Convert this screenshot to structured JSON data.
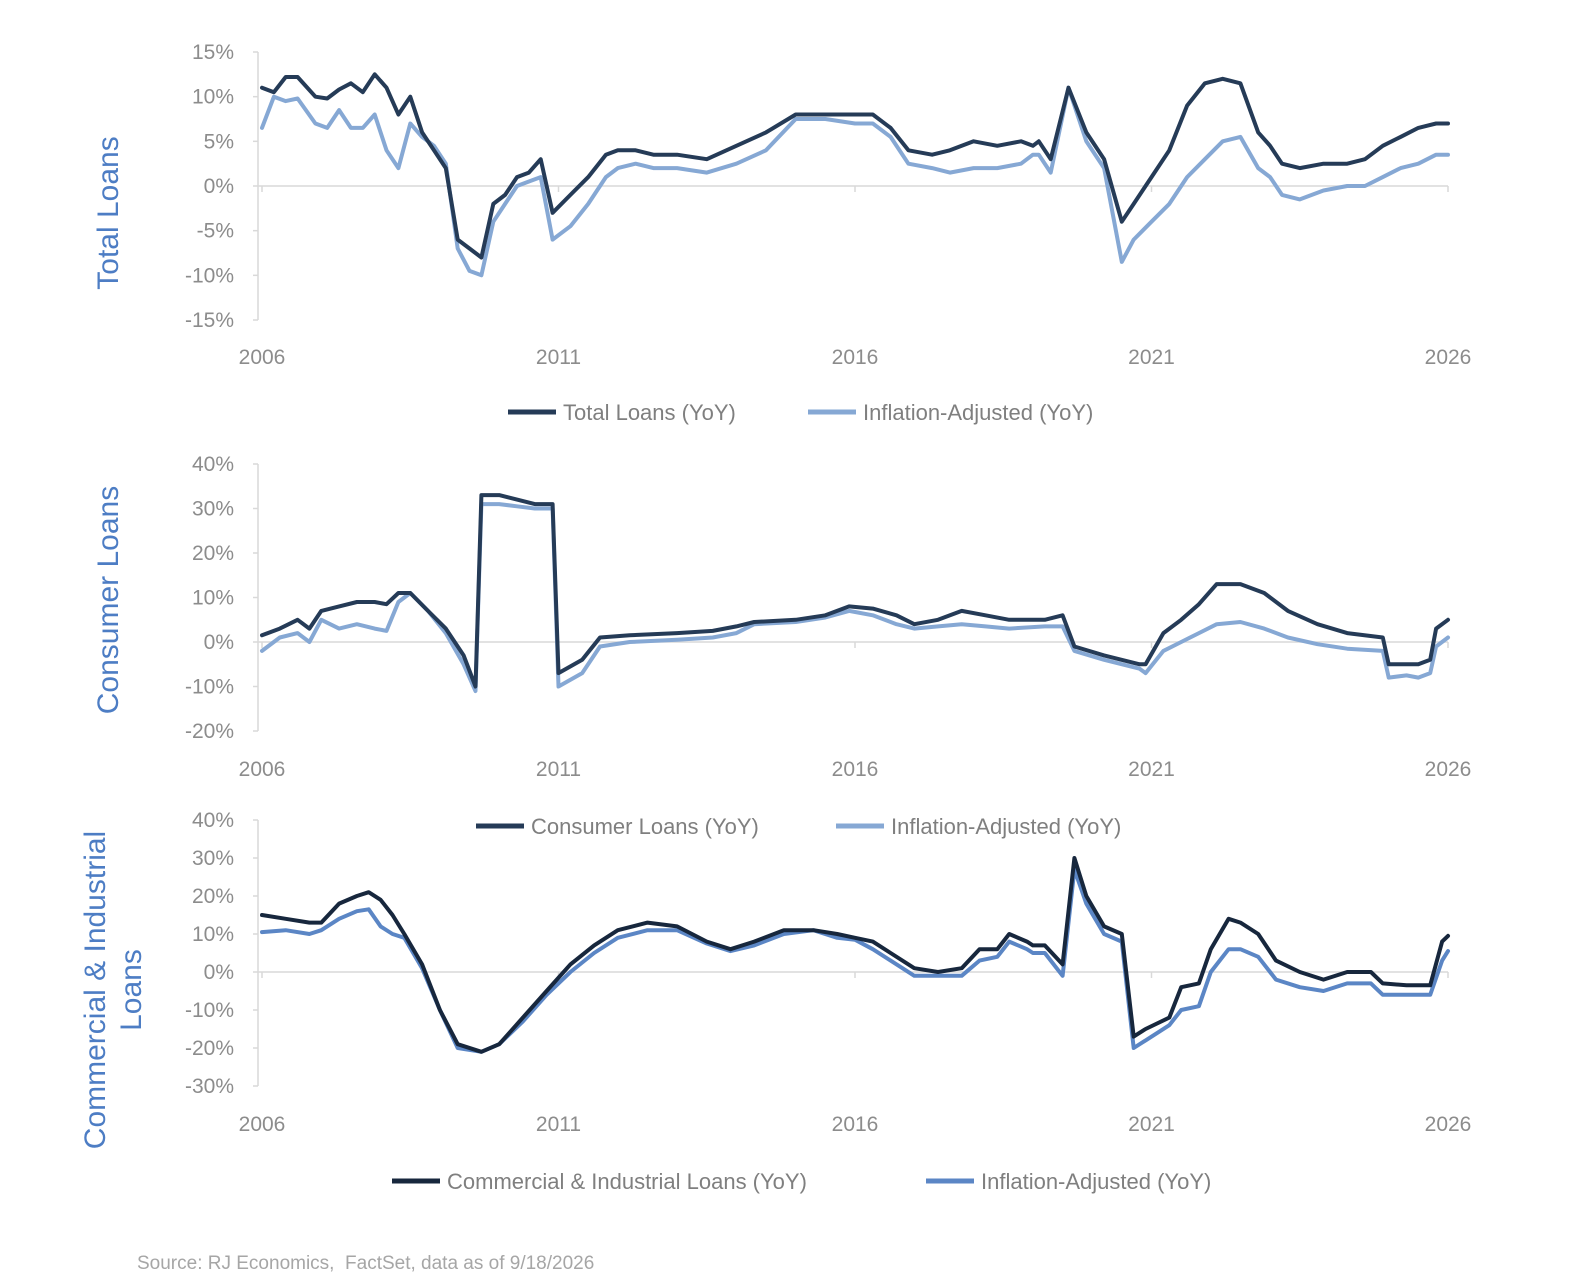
{
  "source": "Source: RJ Economics,  FactSet, data as of 9/18/2026",
  "chart_data": [
    {
      "type": "line",
      "ylabel": "Total Loans",
      "ylim": [
        -15,
        15
      ],
      "yticks": [
        -15,
        -10,
        -5,
        0,
        5,
        10,
        15
      ],
      "ytick_labels": [
        "-15%",
        "-10%",
        "-5%",
        "0%",
        "5%",
        "10%",
        "15%"
      ],
      "xlim": [
        2006,
        2026
      ],
      "xticks": [
        "2006",
        "2011",
        "2016",
        "2021",
        "2026"
      ],
      "series": [
        {
          "name": "Total Loans (YoY)",
          "color": "#253b57",
          "x": [
            2006.0,
            2006.2,
            2006.4,
            2006.6,
            2006.9,
            2007.1,
            2007.3,
            2007.5,
            2007.7,
            2007.9,
            2008.1,
            2008.3,
            2008.5,
            2008.7,
            2008.9,
            2009.1,
            2009.3,
            2009.5,
            2009.7,
            2009.9,
            2010.1,
            2010.3,
            2010.5,
            2010.7,
            2010.9,
            2011.2,
            2011.5,
            2011.8,
            2012.0,
            2012.3,
            2012.6,
            2013.0,
            2013.5,
            2014.0,
            2014.5,
            2015.0,
            2015.5,
            2016.0,
            2016.3,
            2016.6,
            2016.9,
            2017.3,
            2017.6,
            2018.0,
            2018.4,
            2018.8,
            2019.0,
            2019.1,
            2019.3,
            2019.6,
            2019.9,
            2020.2,
            2020.5,
            2020.7,
            2021.0,
            2021.3,
            2021.6,
            2021.9,
            2022.2,
            2022.5,
            2022.8,
            2023.0,
            2023.2,
            2023.5,
            2023.9,
            2024.3,
            2024.6,
            2024.9,
            2025.2,
            2025.5,
            2025.8,
            2026.0
          ],
          "values": [
            11,
            10.5,
            12.2,
            12.2,
            10,
            9.8,
            10.8,
            11.5,
            10.5,
            12.5,
            11,
            8,
            10,
            6,
            4,
            2,
            -6,
            -7,
            -8,
            -2,
            -1,
            1,
            1.5,
            3,
            -3,
            -1,
            1,
            3.5,
            4,
            4,
            3.5,
            3.5,
            3,
            4.5,
            6,
            8,
            8,
            8,
            8,
            6.5,
            4,
            3.5,
            4,
            5,
            4.5,
            5,
            4.5,
            5,
            3,
            11,
            6,
            3,
            -4,
            -2,
            1,
            4,
            9,
            11.5,
            12,
            11.5,
            6,
            4.5,
            2.5,
            2,
            2.5,
            2.5,
            3,
            4.5,
            5.5,
            6.5,
            7,
            7
          ]
        },
        {
          "name": "Inflation-Adjusted (YoY)",
          "color": "#86a8d4",
          "x": [
            2006.0,
            2006.2,
            2006.4,
            2006.6,
            2006.9,
            2007.1,
            2007.3,
            2007.5,
            2007.7,
            2007.9,
            2008.1,
            2008.3,
            2008.5,
            2008.7,
            2008.9,
            2009.1,
            2009.3,
            2009.5,
            2009.7,
            2009.9,
            2010.1,
            2010.3,
            2010.5,
            2010.7,
            2010.9,
            2011.2,
            2011.5,
            2011.8,
            2012.0,
            2012.3,
            2012.6,
            2013.0,
            2013.5,
            2014.0,
            2014.5,
            2015.0,
            2015.5,
            2016.0,
            2016.3,
            2016.6,
            2016.9,
            2017.3,
            2017.6,
            2018.0,
            2018.4,
            2018.8,
            2019.0,
            2019.1,
            2019.3,
            2019.6,
            2019.9,
            2020.2,
            2020.5,
            2020.7,
            2021.0,
            2021.3,
            2021.6,
            2021.9,
            2022.2,
            2022.5,
            2022.8,
            2023.0,
            2023.2,
            2023.5,
            2023.9,
            2024.3,
            2024.6,
            2024.9,
            2025.2,
            2025.5,
            2025.8,
            2026.0
          ],
          "values": [
            6.5,
            10,
            9.5,
            9.8,
            7,
            6.5,
            8.5,
            6.5,
            6.5,
            8,
            4,
            2,
            7,
            5.5,
            4.5,
            2.5,
            -7,
            -9.5,
            -10,
            -4,
            -2,
            0,
            0.5,
            1,
            -6,
            -4.5,
            -2,
            1,
            2,
            2.5,
            2,
            2,
            1.5,
            2.5,
            4,
            7.5,
            7.5,
            7,
            7,
            5.5,
            2.5,
            2,
            1.5,
            2,
            2,
            2.5,
            3.5,
            3.5,
            1.5,
            11,
            5,
            2,
            -8.5,
            -6,
            -4,
            -2,
            1,
            3,
            5,
            5.5,
            2,
            1,
            -1,
            -1.5,
            -0.5,
            0,
            0,
            1,
            2,
            2.5,
            3.5,
            3.5
          ]
        }
      ]
    },
    {
      "type": "line",
      "ylabel": "Consumer  Loans",
      "ylim": [
        -20,
        40
      ],
      "yticks": [
        -20,
        -10,
        0,
        10,
        20,
        30,
        40
      ],
      "ytick_labels": [
        "-20%",
        "-10%",
        "0%",
        "10%",
        "20%",
        "30%",
        "40%"
      ],
      "xlim": [
        2006,
        2026
      ],
      "xticks": [
        "2006",
        "2011",
        "2016",
        "2021",
        "2026"
      ],
      "series": [
        {
          "name": "Consumer Loans (YoY)",
          "color": "#253b57",
          "x": [
            2006.0,
            2006.3,
            2006.6,
            2006.8,
            2007.0,
            2007.3,
            2007.6,
            2007.9,
            2008.1,
            2008.3,
            2008.5,
            2008.8,
            2009.1,
            2009.4,
            2009.6,
            2009.7,
            2010.0,
            2010.3,
            2010.6,
            2010.9,
            2011.0,
            2011.4,
            2011.7,
            2012.2,
            2013.0,
            2013.6,
            2014.0,
            2014.3,
            2015.0,
            2015.5,
            2015.9,
            2016.3,
            2016.7,
            2017.0,
            2017.4,
            2017.8,
            2018.2,
            2018.6,
            2019.2,
            2019.5,
            2019.7,
            2020.2,
            2020.8,
            2020.9,
            2021.2,
            2021.5,
            2021.8,
            2022.1,
            2022.5,
            2022.9,
            2023.3,
            2023.8,
            2024.3,
            2024.9,
            2025.0,
            2025.3,
            2025.5,
            2025.7,
            2025.8,
            2026.0
          ],
          "values": [
            1.5,
            3,
            5,
            3,
            7,
            8,
            9,
            9,
            8.5,
            11,
            11,
            7,
            3,
            -3,
            -10,
            33,
            33,
            32,
            31,
            31,
            -7,
            -4,
            1,
            1.5,
            2,
            2.5,
            3.5,
            4.5,
            5,
            6,
            8,
            7.5,
            6,
            4,
            5,
            7,
            6,
            5,
            5,
            6,
            -1,
            -3,
            -5,
            -5,
            2,
            5,
            8.5,
            13,
            13,
            11,
            7,
            4,
            2,
            1,
            -5,
            -5,
            -5,
            -4,
            3,
            5
          ]
        },
        {
          "name": "Inflation-Adjusted (YoY)",
          "color": "#86a8d4",
          "x": [
            2006.0,
            2006.3,
            2006.6,
            2006.8,
            2007.0,
            2007.3,
            2007.6,
            2007.9,
            2008.1,
            2008.3,
            2008.5,
            2008.8,
            2009.1,
            2009.4,
            2009.6,
            2009.7,
            2010.0,
            2010.3,
            2010.6,
            2010.9,
            2011.0,
            2011.4,
            2011.7,
            2012.2,
            2013.0,
            2013.6,
            2014.0,
            2014.3,
            2015.0,
            2015.5,
            2015.9,
            2016.3,
            2016.7,
            2017.0,
            2017.4,
            2017.8,
            2018.2,
            2018.6,
            2019.2,
            2019.5,
            2019.7,
            2020.2,
            2020.8,
            2020.9,
            2021.2,
            2021.5,
            2021.8,
            2022.1,
            2022.5,
            2022.9,
            2023.3,
            2023.8,
            2024.3,
            2024.9,
            2025.0,
            2025.3,
            2025.5,
            2025.7,
            2025.8,
            2026.0
          ],
          "values": [
            -2,
            1,
            2,
            0,
            5,
            3,
            4,
            3,
            2.5,
            9,
            11,
            7,
            2,
            -5,
            -11,
            31,
            31,
            30.5,
            30,
            30,
            -10,
            -7,
            -1,
            0,
            0.5,
            1,
            2,
            4,
            4.5,
            5.5,
            7,
            6,
            4,
            3,
            3.5,
            4,
            3.5,
            3,
            3.5,
            3.5,
            -2,
            -4,
            -6,
            -7,
            -2,
            0,
            2,
            4,
            4.5,
            3,
            1,
            -0.5,
            -1.5,
            -2,
            -8,
            -7.5,
            -8,
            -7,
            -1,
            1
          ]
        }
      ]
    },
    {
      "type": "line",
      "ylabel_lines": [
        "Commercial & Industrial",
        "Loans"
      ],
      "ylim": [
        -30,
        40
      ],
      "yticks": [
        -30,
        -20,
        -10,
        0,
        10,
        20,
        30,
        40
      ],
      "ytick_labels": [
        "-30%",
        "-20%",
        "-10%",
        "0%",
        "10%",
        "20%",
        "30%",
        "40%"
      ],
      "xlim": [
        2006,
        2026
      ],
      "xticks": [
        "2006",
        "2011",
        "2016",
        "2021",
        "2026"
      ],
      "series": [
        {
          "name": "Commercial & Industrial Loans (YoY)",
          "color": "#17273d",
          "x": [
            2006.0,
            2006.4,
            2006.8,
            2007.0,
            2007.3,
            2007.6,
            2007.8,
            2008.0,
            2008.2,
            2008.4,
            2008.7,
            2009.0,
            2009.3,
            2009.7,
            2010.0,
            2010.4,
            2010.8,
            2011.2,
            2011.6,
            2012.0,
            2012.5,
            2013.0,
            2013.5,
            2013.9,
            2014.3,
            2014.8,
            2015.3,
            2015.7,
            2016.0,
            2016.3,
            2016.6,
            2017.0,
            2017.4,
            2017.8,
            2018.1,
            2018.4,
            2018.6,
            2018.9,
            2019.0,
            2019.2,
            2019.5,
            2019.7,
            2019.9,
            2020.2,
            2020.5,
            2020.7,
            2020.9,
            2021.3,
            2021.5,
            2021.8,
            2022.0,
            2022.3,
            2022.5,
            2022.8,
            2023.1,
            2023.5,
            2023.9,
            2024.3,
            2024.7,
            2024.9,
            2025.3,
            2025.7,
            2025.9,
            2026.0
          ],
          "values": [
            15,
            14,
            13,
            13,
            18,
            20,
            21,
            19,
            15,
            10,
            2,
            -10,
            -19,
            -21,
            -19,
            -12,
            -5,
            2,
            7,
            11,
            13,
            12,
            8,
            6,
            8,
            11,
            11,
            10,
            9,
            8,
            5,
            1,
            0,
            1,
            6,
            6,
            10,
            8,
            7,
            7,
            2,
            30,
            20,
            12,
            10,
            -17,
            -15,
            -12,
            -4,
            -3,
            6,
            14,
            13,
            10,
            3,
            0,
            -2,
            0,
            0,
            -3,
            -3.5,
            -3.5,
            8,
            9.5
          ]
        },
        {
          "name": "Inflation-Adjusted (YoY)",
          "color": "#5b86c5",
          "x": [
            2006.0,
            2006.4,
            2006.8,
            2007.0,
            2007.3,
            2007.6,
            2007.8,
            2008.0,
            2008.2,
            2008.4,
            2008.7,
            2009.0,
            2009.3,
            2009.7,
            2010.0,
            2010.4,
            2010.8,
            2011.2,
            2011.6,
            2012.0,
            2012.5,
            2013.0,
            2013.5,
            2013.9,
            2014.3,
            2014.8,
            2015.3,
            2015.7,
            2016.0,
            2016.3,
            2016.6,
            2017.0,
            2017.4,
            2017.8,
            2018.1,
            2018.4,
            2018.6,
            2018.9,
            2019.0,
            2019.2,
            2019.5,
            2019.7,
            2019.9,
            2020.2,
            2020.5,
            2020.7,
            2020.9,
            2021.3,
            2021.5,
            2021.8,
            2022.0,
            2022.3,
            2022.5,
            2022.8,
            2023.1,
            2023.5,
            2023.9,
            2024.3,
            2024.7,
            2024.9,
            2025.3,
            2025.7,
            2025.9,
            2026.0
          ],
          "values": [
            10.5,
            11,
            10,
            11,
            14,
            16,
            16.5,
            12,
            10,
            9,
            1,
            -10,
            -20,
            -21,
            -19,
            -13,
            -6,
            0,
            5,
            9,
            11,
            11,
            7.5,
            5.5,
            7,
            10,
            11,
            9,
            8.5,
            6,
            3,
            -1,
            -1,
            -1,
            3,
            4,
            8,
            6,
            5,
            5,
            -1,
            27,
            18,
            10,
            8,
            -20,
            -18,
            -14,
            -10,
            -9,
            0,
            6,
            6,
            4,
            -2,
            -4,
            -5,
            -3,
            -3,
            -6,
            -6,
            -6,
            3,
            5.5
          ]
        }
      ]
    }
  ]
}
